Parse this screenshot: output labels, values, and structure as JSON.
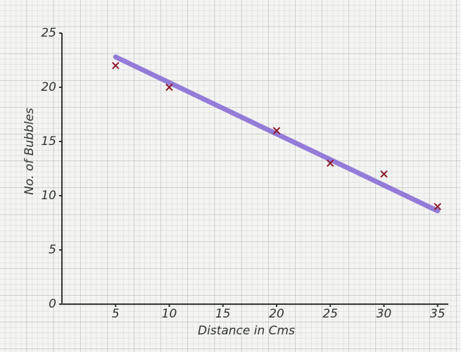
{
  "chart_data": {
    "type": "scatter",
    "x_label": "Distance in Cms",
    "y_label": "No. of Bubbles",
    "series": [
      {
        "x": [
          5,
          10,
          20,
          25,
          30,
          35
        ],
        "y": [
          22,
          20,
          16,
          13,
          12,
          9
        ],
        "color": "#8b1a2b"
      }
    ],
    "trend_line": {
      "x": [
        5,
        35
      ],
      "y": [
        22.8,
        8.6
      ],
      "color": "#8a6fd6"
    },
    "xlim": [
      0,
      36
    ],
    "ylim": [
      0,
      25
    ],
    "xticks": [
      5,
      10,
      15,
      20,
      25,
      30,
      35
    ],
    "yticks": [
      0,
      5,
      10,
      15,
      20,
      25
    ]
  }
}
